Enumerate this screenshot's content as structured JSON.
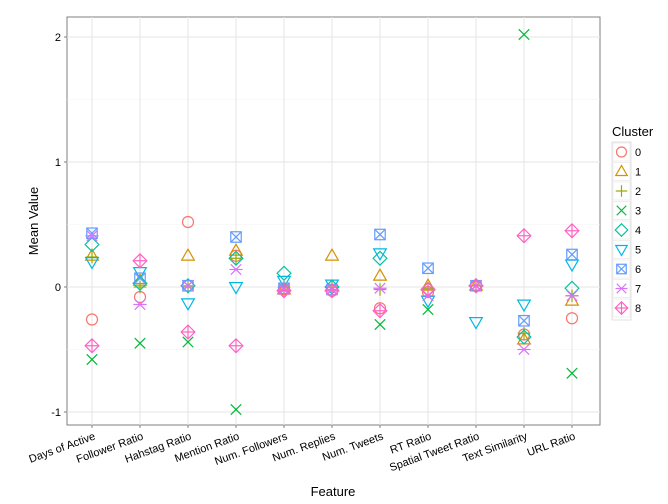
{
  "chart_data": {
    "type": "scatter",
    "xlabel": "Feature",
    "ylabel": "Mean Value",
    "ylim": [
      -1.1,
      2.17
    ],
    "yticks": [
      -1,
      0,
      1,
      2
    ],
    "grid": true,
    "legend_title": "Cluster",
    "legend_position": "right",
    "categories": [
      "Days of Active",
      "Follower Ratio",
      "Hahstag Ratio",
      "Mention Ratio",
      "Num. Followers",
      "Num. Replies",
      "Num. Tweets",
      "RT Ratio",
      "Spatial Tweet Ratio",
      "Text Similarity",
      "URL Ratio"
    ],
    "series": [
      {
        "name": "0",
        "shape": "circle",
        "color": "#F8766D",
        "values": [
          -0.26,
          -0.08,
          0.52,
          0.25,
          -0.02,
          -0.03,
          -0.17,
          -0.04,
          0.01,
          -0.38,
          -0.25
        ]
      },
      {
        "name": "1",
        "shape": "triangle-up",
        "color": "#D39200",
        "values": [
          0.25,
          0.05,
          0.25,
          0.29,
          -0.02,
          0.25,
          0.09,
          0.01,
          0.01,
          -0.42,
          -0.11
        ]
      },
      {
        "name": "2",
        "shape": "plus",
        "color": "#93AA00",
        "values": [
          0.24,
          0.0,
          0.0,
          0.23,
          0.0,
          0.0,
          -0.02,
          -0.01,
          0.01,
          -0.37,
          -0.07
        ]
      },
      {
        "name": "3",
        "shape": "x",
        "color": "#00BA38",
        "values": [
          -0.58,
          -0.45,
          -0.44,
          -0.98,
          -0.02,
          -0.02,
          -0.3,
          -0.18,
          0.01,
          2.02,
          -0.69
        ]
      },
      {
        "name": "4",
        "shape": "diamond",
        "color": "#00C19F",
        "values": [
          0.34,
          0.03,
          0.01,
          0.23,
          0.11,
          0.0,
          0.23,
          -0.02,
          0.01,
          -0.4,
          -0.01
        ]
      },
      {
        "name": "5",
        "shape": "triangle-down",
        "color": "#00B9E3",
        "values": [
          0.2,
          0.12,
          -0.13,
          0.0,
          0.05,
          0.02,
          0.27,
          -0.11,
          -0.28,
          -0.14,
          0.18
        ]
      },
      {
        "name": "6",
        "shape": "square-x",
        "color": "#619CFF",
        "values": [
          0.43,
          0.07,
          0.01,
          0.4,
          -0.01,
          -0.02,
          0.42,
          0.15,
          0.01,
          -0.27,
          0.26
        ]
      },
      {
        "name": "7",
        "shape": "asterisk",
        "color": "#DB72FB",
        "values": [
          0.41,
          -0.14,
          0.01,
          0.14,
          -0.02,
          -0.02,
          -0.01,
          -0.07,
          0.01,
          -0.5,
          -0.07
        ]
      },
      {
        "name": "8",
        "shape": "diamond-plus",
        "color": "#FF61C3",
        "values": [
          -0.47,
          0.21,
          -0.36,
          -0.47,
          -0.03,
          -0.03,
          -0.19,
          -0.02,
          0.01,
          0.41,
          0.45
        ]
      }
    ]
  }
}
